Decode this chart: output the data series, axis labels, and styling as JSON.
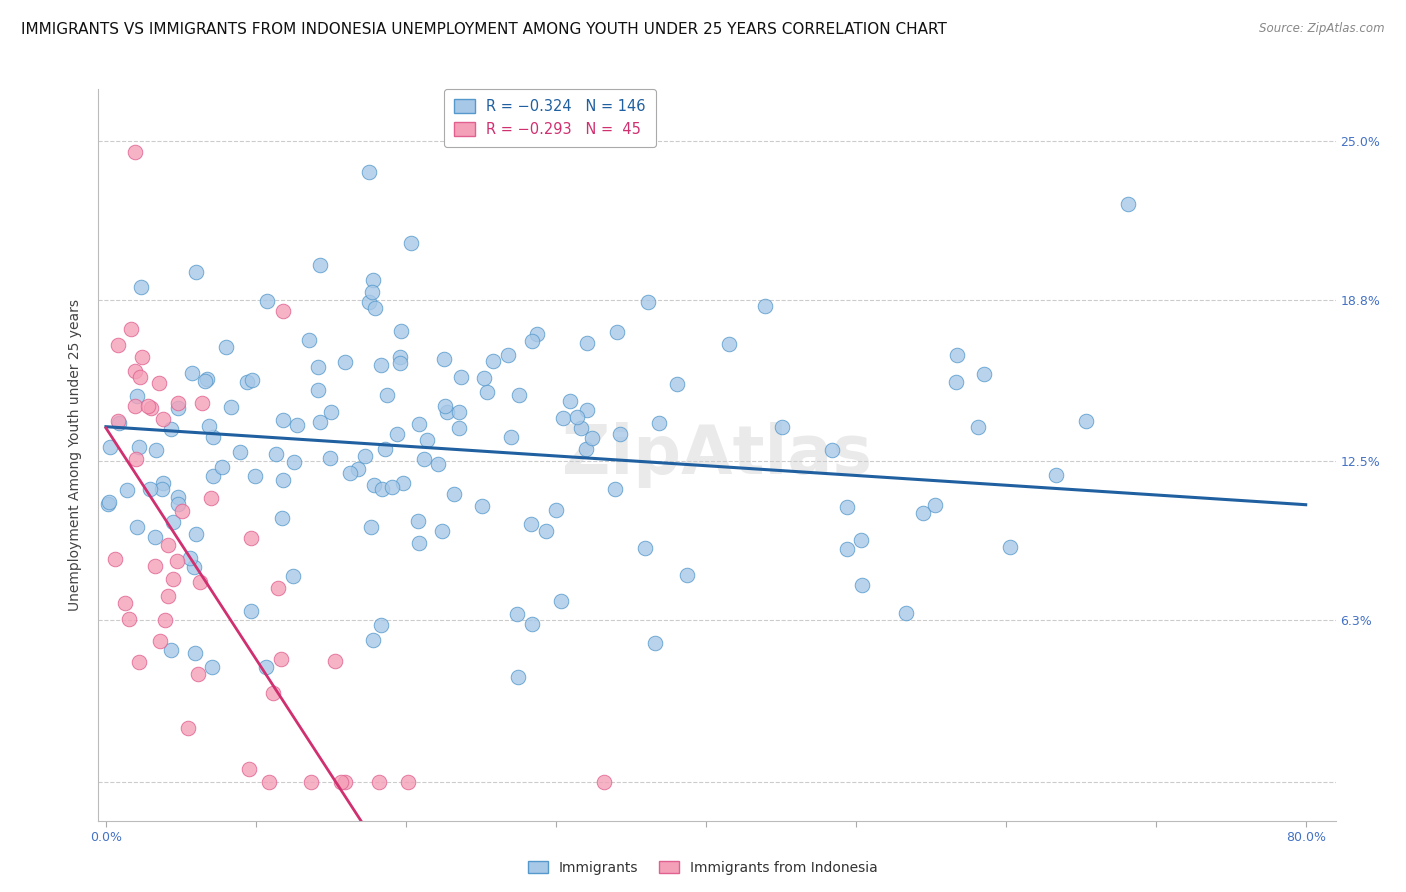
{
  "title": "IMMIGRANTS VS IMMIGRANTS FROM INDONESIA UNEMPLOYMENT AMONG YOUTH UNDER 25 YEARS CORRELATION CHART",
  "source": "Source: ZipAtlas.com",
  "ylabel": "Unemployment Among Youth under 25 years",
  "xlim": [
    -0.005,
    0.82
  ],
  "ylim": [
    -0.015,
    0.27
  ],
  "ytick_positions": [
    0.0,
    0.063,
    0.125,
    0.188,
    0.25
  ],
  "yticklabels_right": [
    "",
    "6.3%",
    "12.5%",
    "18.8%",
    "25.0%"
  ],
  "xtick_positions": [
    0.0,
    0.1,
    0.2,
    0.3,
    0.4,
    0.5,
    0.6,
    0.7,
    0.8
  ],
  "xticklabels": [
    "0.0%",
    "",
    "",
    "",
    "",
    "",
    "",
    "",
    "80.0%"
  ],
  "legend_labels_bottom": [
    "Immigrants",
    "Immigrants from Indonesia"
  ],
  "blue_color": "#a8c8e8",
  "pink_color": "#f4a0b8",
  "blue_edge": "#5599cc",
  "pink_edge": "#e06090",
  "blue_line_color": "#2060a0",
  "pink_line_color": "#d03070",
  "pink_line_dash": [
    6,
    4
  ],
  "watermark": "ZipAtlas",
  "title_fontsize": 11,
  "axis_label_fontsize": 10,
  "tick_fontsize": 9,
  "blue_intercept": 0.1385,
  "blue_slope": -0.038,
  "pink_intercept": 0.138,
  "pink_slope": -0.9,
  "blue_scatter_seed": 77,
  "pink_scatter_seed": 42
}
